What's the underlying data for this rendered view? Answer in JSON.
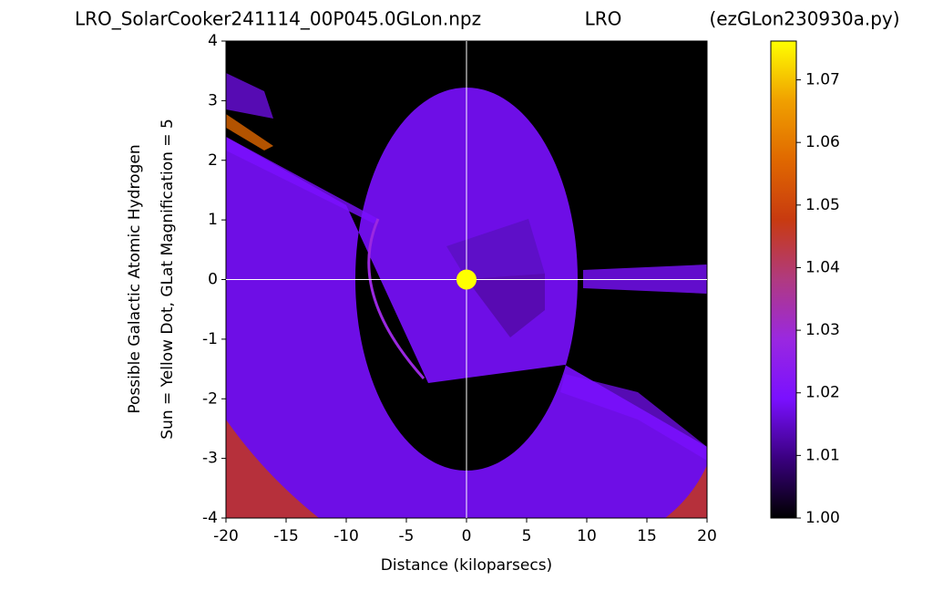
{
  "chart_data": {
    "type": "scatter",
    "title_left": "LRO_SolarCooker241114_00P045.0GLon.npz",
    "title_center": "LRO",
    "title_right": "(ezGLon230930a.py)",
    "x_label": "Distance (kiloparsecs)",
    "y_label_lines": [
      "Possible Galactic Atomic Hydrogen",
      "Sun = Yellow Dot, GLat Magnification = 5"
    ],
    "xlim": [
      -20,
      20
    ],
    "xticks": [
      -20,
      -15,
      -10,
      -5,
      0,
      5,
      10,
      15,
      20
    ],
    "ylim": [
      -4,
      4
    ],
    "yticks": [
      -4,
      -3,
      -2,
      -1,
      0,
      1,
      2,
      3,
      4
    ],
    "series": [
      {
        "color": "#ffff00",
        "x": [
          0
        ],
        "values": [
          0
        ]
      }
    ],
    "colorbar": {
      "lim": [
        1.0,
        1.0762
      ],
      "ticks": [
        {
          "value": 1.0,
          "label": "1.00"
        },
        1.01,
        1.02,
        1.03,
        1.04,
        1.05,
        1.06,
        1.07
      ],
      "colors": [
        "#000000",
        "#3a0080",
        "#7a10ff",
        "#9a28e0",
        "#b03a80",
        "#c83a10",
        "#e06800",
        "#f0a000",
        "#ffff00"
      ]
    }
  }
}
